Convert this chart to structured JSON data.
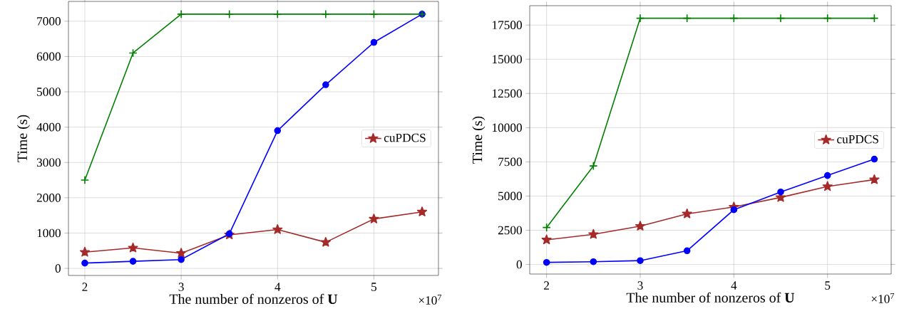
{
  "chart_data": [
    {
      "type": "line",
      "xlabel": "The number of nonzeros of **U**",
      "ylabel": "Time (s)",
      "x": [
        2,
        2.5,
        3,
        3.5,
        4,
        4.5,
        5,
        5.5
      ],
      "xlim": [
        1.83,
        5.67
      ],
      "ylim": [
        -200,
        7560
      ],
      "xticks": [
        2,
        3,
        4,
        5
      ],
      "yticks": [
        0,
        1000,
        2000,
        3000,
        4000,
        5000,
        6000,
        7000
      ],
      "grid": true,
      "legend": "right",
      "annotations": [
        "×10$^{7}$"
      ],
      "series": [
        {
          "name": "cuPDCS",
          "color": "#a52a2a",
          "marker": "star",
          "values": [
            460,
            580,
            430,
            950,
            1100,
            740,
            1400,
            1600
          ]
        },
        {
          "color": "#0000ff",
          "marker": "circle",
          "values": [
            150,
            200,
            250,
            980,
            3900,
            5200,
            6400,
            7200
          ]
        },
        {
          "color": "#008000",
          "marker": "cross",
          "values": [
            2500,
            6100,
            7200,
            7200,
            7200,
            7200,
            7200,
            7200
          ]
        }
      ]
    },
    {
      "type": "line",
      "xlabel": "The number of nonzeros of **U**",
      "ylabel": "Time (s)",
      "x": [
        2,
        2.5,
        3,
        3.5,
        4,
        4.5,
        5,
        5.5
      ],
      "xlim": [
        1.82,
        5.68
      ],
      "ylim": [
        -700,
        18915
      ],
      "xticks": [
        2,
        3,
        4,
        5
      ],
      "yticks": [
        0,
        2500,
        5000,
        7500,
        10000,
        12500,
        15000,
        17500
      ],
      "grid": true,
      "legend": "right",
      "annotations": [
        "×10$^{7}$"
      ],
      "series": [
        {
          "name": "cuPDCS",
          "color": "#a52a2a",
          "marker": "star",
          "values": [
            1800,
            2200,
            2800,
            3700,
            4200,
            4900,
            5700,
            6200
          ]
        },
        {
          "color": "#0000ff",
          "marker": "circle",
          "values": [
            150,
            200,
            280,
            1000,
            4000,
            5300,
            6500,
            7700
          ]
        },
        {
          "color": "#008000",
          "marker": "cross",
          "values": [
            2700,
            7200,
            18000,
            18000,
            18000,
            18000,
            18000,
            18000
          ]
        }
      ]
    }
  ]
}
